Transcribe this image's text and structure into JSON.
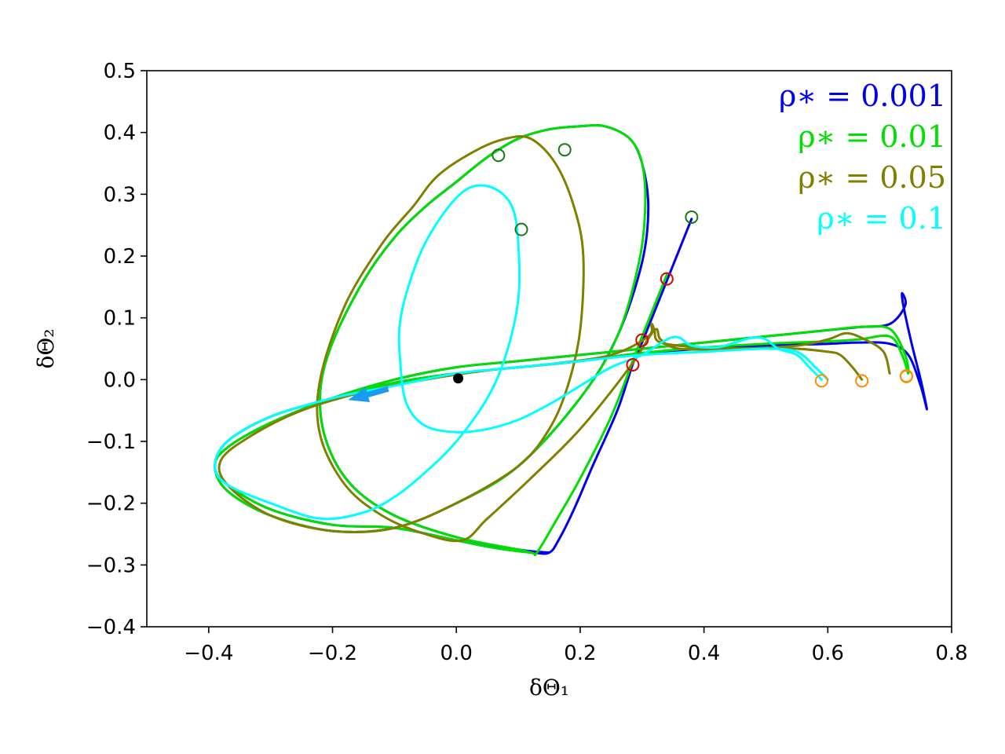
{
  "chart_data": {
    "type": "line",
    "xlabel": "δΘ₁",
    "ylabel": "δΘ₂",
    "xlim": [
      -0.5,
      0.8
    ],
    "ylim": [
      -0.4,
      0.5
    ],
    "xticks": [
      -0.4,
      -0.2,
      0.0,
      0.2,
      0.4,
      0.6,
      0.8
    ],
    "yticks": [
      -0.4,
      -0.3,
      -0.2,
      -0.1,
      0.0,
      0.1,
      0.2,
      0.3,
      0.4,
      0.5
    ],
    "xtick_labels": [
      "−0.4",
      "−0.2",
      "0.0",
      "0.2",
      "0.4",
      "0.6",
      "0.8"
    ],
    "ytick_labels": [
      "−0.4",
      "−0.3",
      "−0.2",
      "−0.1",
      "0.0",
      "0.1",
      "0.2",
      "0.3",
      "0.4",
      "0.5"
    ],
    "grid": false,
    "legend_position": "top-right",
    "series": [
      {
        "name": "ρ∗ = 0.001",
        "color": "#0000ee",
        "points": [
          [
            0.38,
            0.26
          ],
          [
            0.34,
            0.16
          ],
          [
            0.3,
            0.06
          ],
          [
            0.285,
            0.025
          ],
          [
            0.26,
            -0.05
          ],
          [
            0.22,
            -0.14
          ],
          [
            0.19,
            -0.21
          ],
          [
            0.165,
            -0.26
          ],
          [
            0.15,
            -0.28
          ],
          [
            0.125,
            -0.28
          ],
          [
            0.06,
            -0.272
          ],
          [
            0.0,
            -0.26
          ],
          [
            -0.1,
            -0.24
          ],
          [
            -0.2,
            -0.235
          ],
          [
            -0.3,
            -0.21
          ],
          [
            -0.37,
            -0.17
          ],
          [
            -0.39,
            -0.14
          ],
          [
            -0.37,
            -0.1
          ],
          [
            -0.3,
            -0.06
          ],
          [
            -0.2,
            -0.03
          ],
          [
            -0.1,
            -0.005
          ],
          [
            0.0,
            0.01
          ],
          [
            0.1,
            0.02
          ],
          [
            0.2,
            0.03
          ],
          [
            0.3,
            0.043
          ],
          [
            0.4,
            0.05
          ],
          [
            0.5,
            0.055
          ],
          [
            0.6,
            0.058
          ],
          [
            0.65,
            0.06
          ],
          [
            0.7,
            0.058
          ],
          [
            0.73,
            0.04
          ],
          [
            0.75,
            -0.01
          ],
          [
            0.76,
            -0.048
          ],
          [
            0.75,
            0.0
          ],
          [
            0.735,
            0.06
          ],
          [
            0.722,
            0.12
          ],
          [
            0.72,
            0.14
          ],
          [
            0.725,
            0.12
          ],
          [
            0.7,
            0.09
          ],
          [
            0.65,
            0.085
          ],
          [
            0.6,
            0.08
          ],
          [
            0.5,
            0.07
          ],
          [
            0.4,
            0.06
          ],
          [
            0.3,
            0.05
          ],
          [
            0.2,
            0.04
          ],
          [
            0.1,
            0.03
          ],
          [
            0.0,
            0.02
          ],
          [
            -0.1,
            0.0
          ],
          [
            -0.2,
            -0.03
          ],
          [
            -0.3,
            -0.07
          ],
          [
            -0.37,
            -0.11
          ],
          [
            -0.39,
            -0.14
          ],
          [
            -0.37,
            -0.18
          ],
          [
            -0.3,
            -0.22
          ],
          [
            -0.2,
            -0.245
          ],
          [
            -0.1,
            -0.24
          ],
          [
            0.0,
            -0.2
          ],
          [
            0.1,
            -0.14
          ],
          [
            0.2,
            -0.03
          ],
          [
            0.26,
            0.07
          ],
          [
            0.3,
            0.19
          ],
          [
            0.31,
            0.28
          ],
          [
            0.3,
            0.35
          ],
          [
            0.28,
            0.39
          ],
          [
            0.24,
            0.41
          ],
          [
            0.2,
            0.41
          ],
          [
            0.15,
            0.405
          ],
          [
            0.1,
            0.39
          ],
          [
            0.05,
            0.36
          ],
          [
            0.0,
            0.32
          ],
          [
            -0.05,
            0.28
          ],
          [
            -0.1,
            0.23
          ],
          [
            -0.15,
            0.16
          ],
          [
            -0.2,
            0.06
          ],
          [
            -0.22,
            -0.02
          ],
          [
            -0.21,
            -0.1
          ],
          [
            -0.17,
            -0.17
          ],
          [
            -0.1,
            -0.22
          ],
          [
            0.0,
            -0.255
          ],
          [
            0.1,
            -0.275
          ],
          [
            0.15,
            -0.28
          ]
        ],
        "markers": [
          [
            0.38,
            0.263
          ],
          [
            0.285,
            0.024
          ],
          [
            0.727,
            0.005
          ]
        ]
      },
      {
        "name": "ρ∗ = 0.01",
        "color": "#00e000",
        "points": [
          [
            0.34,
            0.17
          ],
          [
            0.3,
            0.07
          ],
          [
            0.285,
            0.03
          ],
          [
            0.25,
            -0.06
          ],
          [
            0.2,
            -0.16
          ],
          [
            0.16,
            -0.23
          ],
          [
            0.13,
            -0.28
          ],
          [
            0.12,
            -0.28
          ],
          [
            0.06,
            -0.272
          ],
          [
            0.0,
            -0.26
          ],
          [
            -0.1,
            -0.24
          ],
          [
            -0.2,
            -0.235
          ],
          [
            -0.3,
            -0.21
          ],
          [
            -0.37,
            -0.17
          ],
          [
            -0.39,
            -0.14
          ],
          [
            -0.37,
            -0.1
          ],
          [
            -0.3,
            -0.06
          ],
          [
            -0.2,
            -0.03
          ],
          [
            -0.1,
            -0.005
          ],
          [
            0.0,
            0.01
          ],
          [
            0.1,
            0.02
          ],
          [
            0.2,
            0.03
          ],
          [
            0.3,
            0.043
          ],
          [
            0.4,
            0.052
          ],
          [
            0.5,
            0.058
          ],
          [
            0.6,
            0.062
          ],
          [
            0.65,
            0.065
          ],
          [
            0.7,
            0.07
          ],
          [
            0.72,
            0.04
          ],
          [
            0.73,
            0.01
          ],
          [
            0.725,
            0.04
          ],
          [
            0.7,
            0.082
          ],
          [
            0.65,
            0.085
          ],
          [
            0.6,
            0.08
          ],
          [
            0.5,
            0.07
          ],
          [
            0.4,
            0.06
          ],
          [
            0.3,
            0.05
          ],
          [
            0.2,
            0.04
          ],
          [
            0.1,
            0.03
          ],
          [
            0.0,
            0.02
          ],
          [
            -0.1,
            0.0
          ],
          [
            -0.2,
            -0.03
          ],
          [
            -0.3,
            -0.07
          ],
          [
            -0.37,
            -0.11
          ],
          [
            -0.39,
            -0.14
          ],
          [
            -0.37,
            -0.18
          ],
          [
            -0.3,
            -0.22
          ],
          [
            -0.2,
            -0.245
          ],
          [
            -0.1,
            -0.24
          ],
          [
            0.0,
            -0.2
          ],
          [
            0.1,
            -0.14
          ],
          [
            0.2,
            -0.03
          ],
          [
            0.26,
            0.07
          ],
          [
            0.295,
            0.19
          ],
          [
            0.305,
            0.28
          ],
          [
            0.3,
            0.35
          ],
          [
            0.28,
            0.39
          ],
          [
            0.24,
            0.41
          ],
          [
            0.2,
            0.41
          ],
          [
            0.15,
            0.405
          ],
          [
            0.1,
            0.39
          ],
          [
            0.05,
            0.36
          ],
          [
            0.0,
            0.32
          ],
          [
            -0.05,
            0.28
          ],
          [
            -0.1,
            0.23
          ],
          [
            -0.15,
            0.16
          ],
          [
            -0.2,
            0.06
          ],
          [
            -0.22,
            -0.02
          ],
          [
            -0.21,
            -0.1
          ],
          [
            -0.17,
            -0.17
          ],
          [
            -0.1,
            -0.22
          ],
          [
            0.0,
            -0.255
          ],
          [
            0.1,
            -0.275
          ],
          [
            0.12,
            -0.28
          ]
        ],
        "markers": [
          [
            0.34,
            0.163
          ],
          [
            0.3,
            0.064
          ],
          [
            0.727,
            0.006
          ]
        ]
      },
      {
        "name": "ρ∗ = 0.05",
        "color": "#808000",
        "points": [
          [
            0.655,
            0.0
          ],
          [
            0.64,
            0.02
          ],
          [
            0.62,
            0.04
          ],
          [
            0.6,
            0.045
          ],
          [
            0.55,
            0.05
          ],
          [
            0.5,
            0.05
          ],
          [
            0.4,
            0.052
          ],
          [
            0.33,
            0.06
          ],
          [
            0.32,
            0.08
          ],
          [
            0.315,
            0.09
          ],
          [
            0.31,
            0.07
          ],
          [
            0.25,
            0.04
          ],
          [
            0.15,
            0.025
          ],
          [
            0.05,
            0.015
          ],
          [
            -0.05,
            0.0
          ],
          [
            -0.15,
            -0.02
          ],
          [
            -0.25,
            -0.05
          ],
          [
            -0.33,
            -0.09
          ],
          [
            -0.38,
            -0.13
          ],
          [
            -0.37,
            -0.17
          ],
          [
            -0.3,
            -0.22
          ],
          [
            -0.2,
            -0.245
          ],
          [
            -0.1,
            -0.24
          ],
          [
            0.0,
            -0.2
          ],
          [
            0.1,
            -0.14
          ],
          [
            0.15,
            -0.08
          ],
          [
            0.18,
            -0.01
          ],
          [
            0.2,
            0.08
          ],
          [
            0.205,
            0.2
          ],
          [
            0.19,
            0.28
          ],
          [
            0.16,
            0.35
          ],
          [
            0.12,
            0.39
          ],
          [
            0.08,
            0.39
          ],
          [
            0.03,
            0.37
          ],
          [
            -0.03,
            0.33
          ],
          [
            -0.07,
            0.28
          ],
          [
            -0.12,
            0.22
          ],
          [
            -0.18,
            0.12
          ],
          [
            -0.22,
            0.0
          ],
          [
            -0.22,
            -0.09
          ],
          [
            -0.18,
            -0.17
          ],
          [
            -0.12,
            -0.22
          ],
          [
            -0.05,
            -0.25
          ],
          [
            0.01,
            -0.26
          ],
          [
            0.05,
            -0.225
          ],
          [
            0.12,
            -0.16
          ],
          [
            0.2,
            -0.08
          ],
          [
            0.28,
            0.02
          ],
          [
            0.32,
            0.08
          ],
          [
            0.33,
            0.065
          ],
          [
            0.36,
            0.05
          ],
          [
            0.45,
            0.05
          ],
          [
            0.55,
            0.055
          ],
          [
            0.6,
            0.065
          ],
          [
            0.63,
            0.075
          ],
          [
            0.66,
            0.065
          ],
          [
            0.69,
            0.045
          ],
          [
            0.7,
            0.01
          ]
        ],
        "markers": [
          [
            0.655,
            -0.002
          ],
          [
            0.068,
            0.363
          ],
          [
            0.175,
            0.372
          ]
        ]
      },
      {
        "name": "ρ∗ = 0.1",
        "color": "#00ffff",
        "points": [
          [
            0.59,
            0.0
          ],
          [
            0.57,
            0.02
          ],
          [
            0.55,
            0.04
          ],
          [
            0.52,
            0.05
          ],
          [
            0.5,
            0.065
          ],
          [
            0.48,
            0.068
          ],
          [
            0.45,
            0.06
          ],
          [
            0.42,
            0.052
          ],
          [
            0.38,
            0.055
          ],
          [
            0.36,
            0.068
          ],
          [
            0.34,
            0.065
          ],
          [
            0.3,
            0.04
          ],
          [
            0.25,
            0.02
          ],
          [
            0.2,
            -0.01
          ],
          [
            0.15,
            -0.04
          ],
          [
            0.1,
            -0.065
          ],
          [
            0.05,
            -0.08
          ],
          [
            0.0,
            -0.085
          ],
          [
            -0.05,
            -0.075
          ],
          [
            -0.08,
            -0.04
          ],
          [
            -0.09,
            0.02
          ],
          [
            -0.09,
            0.1
          ],
          [
            -0.06,
            0.2
          ],
          [
            -0.02,
            0.27
          ],
          [
            0.02,
            0.31
          ],
          [
            0.06,
            0.31
          ],
          [
            0.09,
            0.28
          ],
          [
            0.1,
            0.22
          ],
          [
            0.1,
            0.13
          ],
          [
            0.08,
            0.04
          ],
          [
            0.05,
            -0.03
          ],
          [
            0.0,
            -0.1
          ],
          [
            -0.05,
            -0.15
          ],
          [
            -0.1,
            -0.19
          ],
          [
            -0.15,
            -0.215
          ],
          [
            -0.22,
            -0.225
          ],
          [
            -0.3,
            -0.2
          ],
          [
            -0.37,
            -0.17
          ],
          [
            -0.39,
            -0.14
          ],
          [
            -0.37,
            -0.1
          ],
          [
            -0.3,
            -0.06
          ],
          [
            -0.2,
            -0.03
          ],
          [
            -0.1,
            -0.01
          ],
          [
            0.0,
            0.01
          ],
          [
            0.1,
            0.02
          ],
          [
            0.2,
            0.03
          ],
          [
            0.3,
            0.04
          ],
          [
            0.4,
            0.045
          ],
          [
            0.5,
            0.05
          ],
          [
            0.55,
            0.045
          ],
          [
            0.58,
            0.02
          ],
          [
            0.6,
            0.0
          ]
        ],
        "markers": [
          [
            0.59,
            -0.002
          ],
          [
            0.105,
            0.243
          ]
        ]
      }
    ],
    "fixed_point": [
      0.003,
      0.002
    ],
    "arrow": {
      "from": [
        -0.11,
        -0.015
      ],
      "to": [
        -0.175,
        -0.033
      ],
      "color": "#1a9af0"
    }
  }
}
